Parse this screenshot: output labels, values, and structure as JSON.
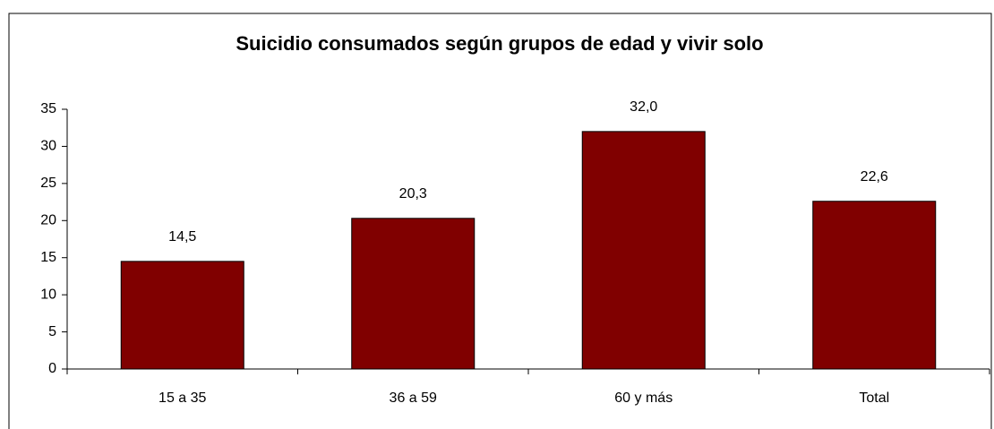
{
  "chart_data": {
    "type": "bar",
    "title": "Suicidio consumados según grupos de edad y vivir solo",
    "categories": [
      "15 a 35",
      "36 a 59",
      "60 y más",
      "Total"
    ],
    "values": [
      14.5,
      20.3,
      32.0,
      22.6
    ],
    "value_labels": [
      "14,5",
      "20,3",
      "32,0",
      "22,6"
    ],
    "color": "#800000",
    "ylim": [
      0,
      35
    ],
    "yticks": [
      0,
      5,
      10,
      15,
      20,
      25,
      30,
      35
    ],
    "grid": false
  }
}
